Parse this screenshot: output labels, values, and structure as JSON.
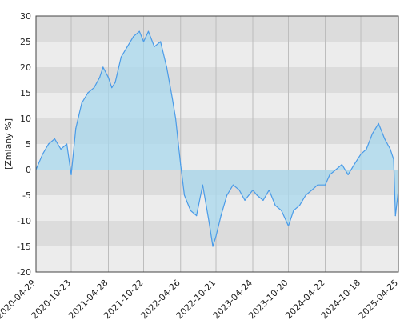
{
  "chart_data": {
    "type": "area",
    "ylabel": "[Zmiany %]",
    "xlabel": "",
    "title": "",
    "ylim": [
      -20,
      30
    ],
    "yticks": [
      30,
      25,
      20,
      15,
      10,
      5,
      0,
      -5,
      -10,
      -15,
      -20
    ],
    "xticks": [
      "2020-04-29",
      "2020-10-23",
      "2021-04-28",
      "2021-10-22",
      "2022-04-26",
      "2022-10-21",
      "2023-04-24",
      "2023-10-20",
      "2024-04-22",
      "2024-10-18",
      "2025-04-25"
    ],
    "grid": true,
    "legend": "none",
    "series": [
      {
        "x": [
          "2020-04-29",
          "2020-06-01",
          "2020-07-01",
          "2020-08-01",
          "2020-09-01",
          "2020-10-01",
          "2020-10-23",
          "2020-11-15",
          "2020-12-15",
          "2021-01-15",
          "2021-02-15",
          "2021-03-15",
          "2021-04-01",
          "2021-04-28",
          "2021-05-15",
          "2021-06-01",
          "2021-07-01",
          "2021-08-01",
          "2021-09-01",
          "2021-10-01",
          "2021-10-22",
          "2021-11-15",
          "2021-12-15",
          "2022-01-15",
          "2022-02-15",
          "2022-03-15",
          "2022-04-01",
          "2022-04-26",
          "2022-05-15",
          "2022-06-15",
          "2022-07-15",
          "2022-08-15",
          "2022-09-15",
          "2022-10-05",
          "2022-10-21",
          "2022-11-15",
          "2022-12-15",
          "2023-01-15",
          "2023-02-15",
          "2023-03-15",
          "2023-04-24",
          "2023-05-15",
          "2023-06-15",
          "2023-07-15",
          "2023-08-15",
          "2023-09-15",
          "2023-10-20",
          "2023-11-15",
          "2023-12-15",
          "2024-01-15",
          "2024-02-15",
          "2024-03-15",
          "2024-04-22",
          "2024-05-15",
          "2024-06-15",
          "2024-07-15",
          "2024-08-15",
          "2024-09-15",
          "2024-10-18",
          "2024-11-15",
          "2024-12-15",
          "2025-01-15",
          "2025-02-15",
          "2025-03-15",
          "2025-04-01",
          "2025-04-10",
          "2025-04-25"
        ],
        "y": [
          0,
          3,
          5,
          6,
          4,
          5,
          -1,
          8,
          13,
          15,
          16,
          18,
          20,
          18,
          16,
          17,
          22,
          24,
          26,
          27,
          25,
          27,
          24,
          25,
          20,
          14,
          10,
          1,
          -5,
          -8,
          -9,
          -3,
          -10,
          -15,
          -13,
          -9,
          -5,
          -3,
          -4,
          -6,
          -4,
          -5,
          -6,
          -4,
          -7,
          -8,
          -11,
          -8,
          -7,
          -5,
          -4,
          -3,
          -3,
          -1,
          0,
          1,
          -1,
          1,
          3,
          4,
          7,
          9,
          6,
          4,
          2,
          -9,
          -4
        ]
      }
    ]
  }
}
